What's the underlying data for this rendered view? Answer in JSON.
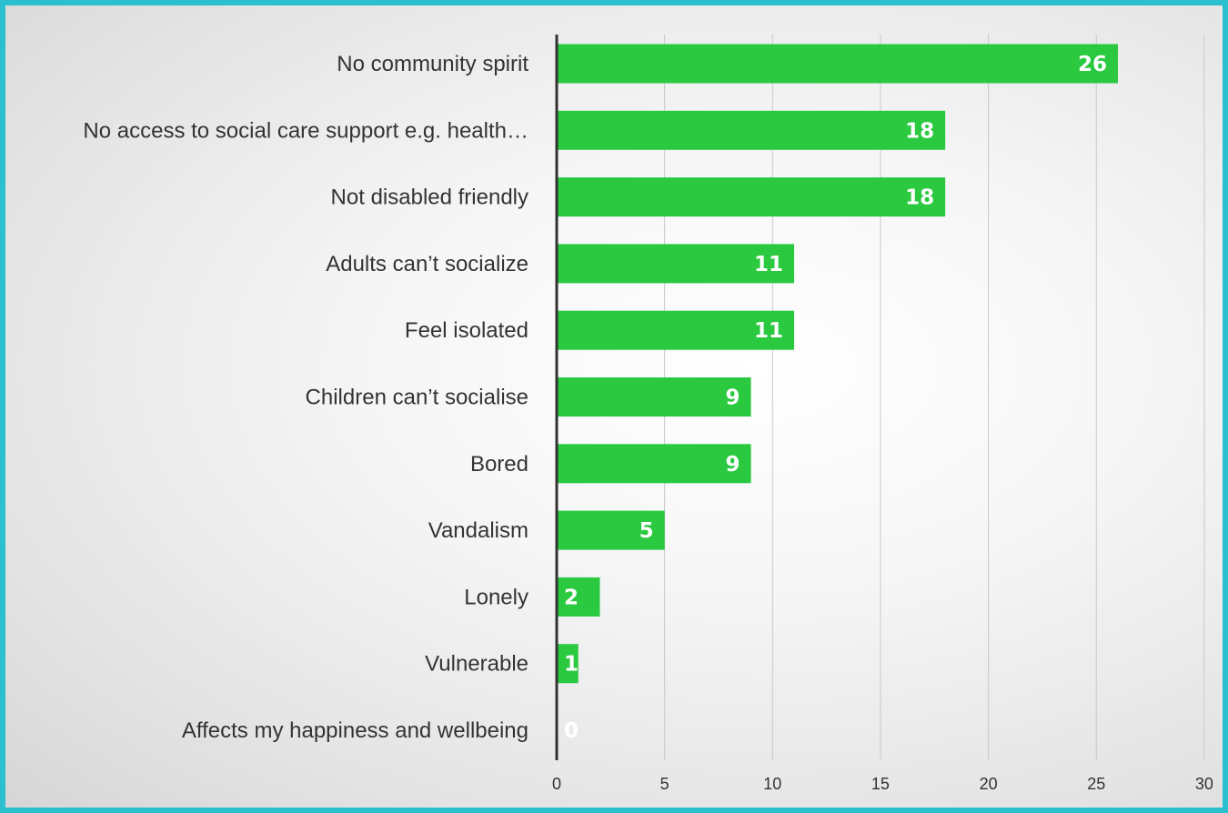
{
  "chart_data": {
    "type": "bar",
    "orientation": "horizontal",
    "categories": [
      "No community spirit",
      "No access to social care support e.g. health…",
      "Not disabled friendly",
      "Adults can’t socialize",
      "Feel isolated",
      "Children can’t socialise",
      "Bored",
      "Vandalism",
      "Lonely",
      "Vulnerable",
      "Affects my happiness and wellbeing"
    ],
    "values": [
      26,
      18,
      18,
      11,
      11,
      9,
      9,
      5,
      2,
      1,
      0
    ],
    "data_labels": [
      "26",
      "18",
      "18",
      "11",
      "11",
      "9",
      "9",
      "5",
      "2",
      "1",
      "0"
    ],
    "xlim": [
      0,
      30
    ],
    "x_ticks": [
      "0",
      "5",
      "10",
      "15",
      "20",
      "25",
      "30"
    ],
    "grid": "vertical",
    "legend": "none",
    "bar_color": "#2ac940",
    "border_color": "#2cbfd0"
  }
}
